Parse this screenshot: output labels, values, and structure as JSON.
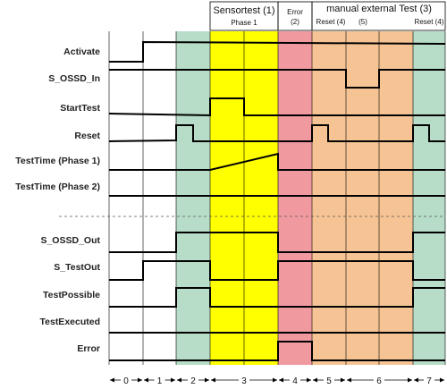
{
  "header": {
    "sensortest": "Sensortest (1)",
    "phase1": "Phase 1",
    "error_line1": "Error",
    "error_line2": "(2)",
    "manual": "manual external Test (3)",
    "reset4_left": "Reset (4)",
    "five": "(5)",
    "reset4_right": "Reset (4)"
  },
  "phases": [
    "0",
    "1",
    "2",
    "3",
    "4",
    "5",
    "6",
    "7"
  ],
  "colors": {
    "green": "#b7dcc7",
    "yellow": "#ffff00",
    "red": "#f09aa0",
    "orange": "#f6c494",
    "line": "#000000"
  },
  "signals": [
    {
      "name": "Activate",
      "label": "Activate"
    },
    {
      "name": "s-ossd-in",
      "label": "S_OSSD_In"
    },
    {
      "name": "starttest",
      "label": "StartTest"
    },
    {
      "name": "reset",
      "label": "Reset"
    },
    {
      "name": "testtime-phase1",
      "label": "TestTime (Phase 1)"
    },
    {
      "name": "testtime-phase2",
      "label": "TestTime (Phase 2)"
    },
    {
      "name": "s-ossd-out",
      "label": "S_OSSD_Out"
    },
    {
      "name": "s-testout",
      "label": "S_TestOut"
    },
    {
      "name": "testpossible",
      "label": "TestPossible"
    },
    {
      "name": "testexecuted",
      "label": "TestExecuted"
    },
    {
      "name": "error",
      "label": "Error"
    }
  ]
}
